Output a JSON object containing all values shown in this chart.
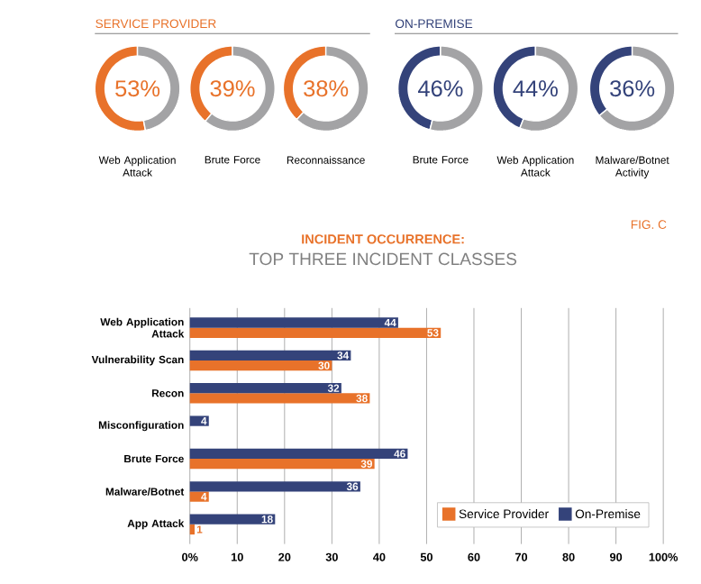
{
  "chart_data": [
    {
      "type": "donut",
      "subtitle": "SERVICE PROVIDER",
      "title": "Web Application Attack",
      "categories": [
        null,
        null
      ],
      "values": [
        53,
        47
      ],
      "colors": [
        "#e8722a",
        "#a3a3a5"
      ],
      "annotations": [
        "53%"
      ]
    },
    {
      "type": "donut",
      "title": "Brute Force",
      "categories": [
        null,
        null
      ],
      "values": [
        39,
        61
      ],
      "colors": [
        "#e8722a",
        "#a3a3a5"
      ],
      "annotations": [
        "39%"
      ]
    },
    {
      "type": "donut",
      "title": "Reconnaissance",
      "categories": [
        null,
        null
      ],
      "values": [
        38,
        62
      ],
      "colors": [
        "#e8722a",
        "#a3a3a5"
      ],
      "annotations": [
        "38%"
      ]
    },
    {
      "type": "donut",
      "subtitle": "ON-PREMISE",
      "title": "Brute Force",
      "categories": [
        null,
        null
      ],
      "values": [
        46,
        54
      ],
      "colors": [
        "#34437a",
        "#a3a3a5"
      ],
      "annotations": [
        "46%"
      ]
    },
    {
      "type": "donut",
      "title": "Web Application Attack",
      "categories": [
        null,
        null
      ],
      "values": [
        44,
        56
      ],
      "colors": [
        "#34437a",
        "#a3a3a5"
      ],
      "annotations": [
        "44%"
      ]
    },
    {
      "type": "donut",
      "title": "Malware/Botnet Activity",
      "categories": [
        null,
        null
      ],
      "values": [
        36,
        64
      ],
      "colors": [
        "#34437a",
        "#a3a3a5"
      ],
      "annotations": [
        "36%"
      ]
    },
    {
      "type": "bar",
      "orientation": "horizontal",
      "title": "INCIDENT OCCURRENCE:",
      "subtitle": "TOP THREE INCIDENT CLASSES",
      "annotations": [
        "FIG. C"
      ],
      "categories": [
        "Web Application Attack",
        "Vulnerability Scan",
        "Recon",
        "Misconfiguration",
        "Brute Force",
        "Malware/Botnet",
        "App Attack"
      ],
      "series": [
        {
          "name": "Service Provider",
          "color": "#e8722a",
          "values": [
            53,
            30,
            38,
            null,
            39,
            4,
            1
          ]
        },
        {
          "name": "On-Premise",
          "color": "#34437a",
          "values": [
            44,
            34,
            32,
            4,
            46,
            36,
            18
          ]
        }
      ],
      "xlim": [
        0,
        100
      ],
      "xticks": [
        {
          "value": 0,
          "label": "0%"
        },
        10,
        20,
        30,
        40,
        50,
        60,
        70,
        80,
        90,
        {
          "value": 100,
          "label": "100%"
        }
      ],
      "grid": "x",
      "legend": "bottom right",
      "data_labels": true
    }
  ]
}
